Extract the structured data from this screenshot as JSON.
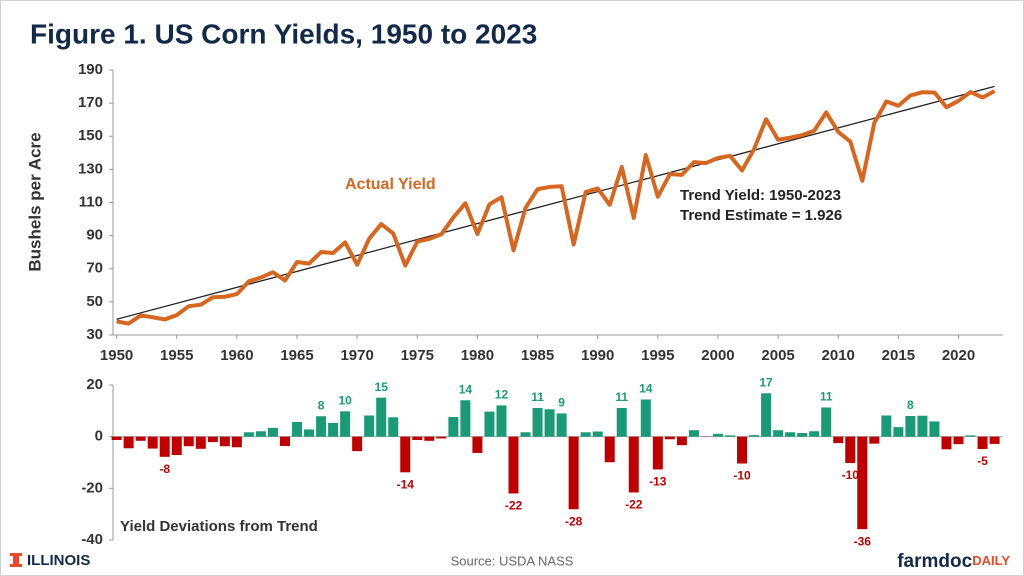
{
  "chart_data": [
    {
      "type": "line",
      "title": "Figure 1. US Corn Yields, 1950 to 2023",
      "ylabel": "Bushels per Acre",
      "x": [
        1950,
        1951,
        1952,
        1953,
        1954,
        1955,
        1956,
        1957,
        1958,
        1959,
        1960,
        1961,
        1962,
        1963,
        1964,
        1965,
        1966,
        1967,
        1968,
        1969,
        1970,
        1971,
        1972,
        1973,
        1974,
        1975,
        1976,
        1977,
        1978,
        1979,
        1980,
        1981,
        1982,
        1983,
        1984,
        1985,
        1986,
        1987,
        1988,
        1989,
        1990,
        1991,
        1992,
        1993,
        1994,
        1995,
        1996,
        1997,
        1998,
        1999,
        2000,
        2001,
        2002,
        2003,
        2004,
        2005,
        2006,
        2007,
        2008,
        2009,
        2010,
        2011,
        2012,
        2013,
        2014,
        2015,
        2016,
        2017,
        2018,
        2019,
        2020,
        2021,
        2022,
        2023
      ],
      "xlim": [
        1949.7,
        2023.7
      ],
      "xticks": [
        1950,
        1955,
        1960,
        1965,
        1970,
        1975,
        1980,
        1985,
        1990,
        1995,
        2000,
        2005,
        2010,
        2015,
        2020
      ],
      "ylim": [
        30,
        190
      ],
      "yticks": [
        30,
        50,
        70,
        90,
        110,
        130,
        150,
        170,
        190
      ],
      "series": [
        {
          "name": "Actual Yield",
          "color": "#d9661f",
          "values": [
            38.2,
            36.9,
            41.8,
            40.7,
            39.4,
            42.0,
            47.4,
            48.3,
            52.8,
            53.1,
            54.7,
            62.4,
            64.7,
            67.9,
            62.9,
            74.1,
            73.1,
            80.1,
            79.5,
            85.9,
            72.4,
            88.1,
            97.0,
            91.3,
            71.9,
            86.4,
            88.0,
            90.8,
            101.0,
            109.5,
            91.0,
            108.9,
            113.2,
            81.1,
            106.7,
            118.0,
            119.4,
            119.8,
            84.6,
            116.3,
            118.5,
            108.6,
            131.5,
            100.7,
            138.6,
            113.5,
            127.1,
            126.7,
            134.4,
            133.8,
            136.9,
            138.2,
            129.3,
            142.2,
            160.3,
            147.9,
            149.1,
            150.7,
            153.3,
            164.4,
            152.6,
            146.8,
            123.1,
            158.1,
            171.0,
            168.4,
            174.6,
            176.6,
            176.4,
            167.5,
            171.4,
            176.7,
            173.4,
            177.3
          ]
        }
      ],
      "trend": {
        "color": "#222222",
        "x": [
          1950,
          2023
        ],
        "values": [
          39.5,
          180.1
        ]
      },
      "annotations": [
        "Trend Yield: 1950-2023",
        "Trend Estimate = 1.926"
      ]
    },
    {
      "type": "bar",
      "subtitle": "Yield Deviations from Trend",
      "x": [
        1950,
        1951,
        1952,
        1953,
        1954,
        1955,
        1956,
        1957,
        1958,
        1959,
        1960,
        1961,
        1962,
        1963,
        1964,
        1965,
        1966,
        1967,
        1968,
        1969,
        1970,
        1971,
        1972,
        1973,
        1974,
        1975,
        1976,
        1977,
        1978,
        1979,
        1980,
        1981,
        1982,
        1983,
        1984,
        1985,
        1986,
        1987,
        1988,
        1989,
        1990,
        1991,
        1992,
        1993,
        1994,
        1995,
        1996,
        1997,
        1998,
        1999,
        2000,
        2001,
        2002,
        2003,
        2004,
        2005,
        2006,
        2007,
        2008,
        2009,
        2010,
        2011,
        2012,
        2013,
        2014,
        2015,
        2016,
        2017,
        2018,
        2019,
        2020,
        2021,
        2022,
        2023
      ],
      "xlim": [
        1949.7,
        2023.7
      ],
      "ylim": [
        -40,
        20
      ],
      "yticks": [
        -40,
        -20,
        0,
        20
      ],
      "positive_color": "#1a9b78",
      "negative_color": "#c00000",
      "values": [
        -1.3,
        -4.5,
        -1.6,
        -4.6,
        -7.8,
        -7.1,
        -3.7,
        -4.7,
        -2.1,
        -3.7,
        -4.1,
        1.7,
        2.1,
        3.4,
        -3.6,
        5.7,
        2.8,
        7.9,
        5.3,
        9.8,
        -5.6,
        8.2,
        15.1,
        7.5,
        -13.8,
        -1.3,
        -1.6,
        -0.7,
        7.6,
        14.1,
        -6.3,
        9.7,
        12.1,
        -22.0,
        1.7,
        11.1,
        10.6,
        9.0,
        -28.1,
        1.7,
        2.0,
        -9.9,
        11.1,
        -21.6,
        14.4,
        -12.7,
        -1.0,
        -3.3,
        2.5,
        -0.1,
        1.1,
        0.5,
        -10.4,
        0.6,
        16.8,
        2.5,
        1.7,
        1.4,
        2.1,
        11.3,
        -2.5,
        -10.2,
        -35.8,
        -2.7,
        8.2,
        3.7,
        8.0,
        8.1,
        5.9,
        -4.9,
        -2.9,
        0.5,
        -4.8,
        -2.8
      ],
      "value_labels": [
        null,
        null,
        null,
        null,
        "-8",
        null,
        null,
        null,
        null,
        null,
        null,
        null,
        null,
        null,
        null,
        null,
        null,
        "8",
        null,
        "10",
        null,
        null,
        "15",
        null,
        "-14",
        null,
        null,
        null,
        null,
        "14",
        null,
        null,
        "12",
        "-22",
        null,
        "11",
        null,
        "9",
        "-28",
        null,
        null,
        null,
        "11",
        "-22",
        "14",
        "-13",
        null,
        null,
        null,
        null,
        null,
        null,
        "-10",
        null,
        "17",
        null,
        null,
        null,
        null,
        "11",
        null,
        "-10",
        "-36",
        null,
        null,
        null,
        "8",
        null,
        null,
        null,
        null,
        null,
        "-5",
        null
      ]
    }
  ],
  "source": "Source: USDA NASS",
  "branding": {
    "left": "ILLINOIS",
    "right_main": "farmdoc",
    "right_accent": "DAILY"
  }
}
